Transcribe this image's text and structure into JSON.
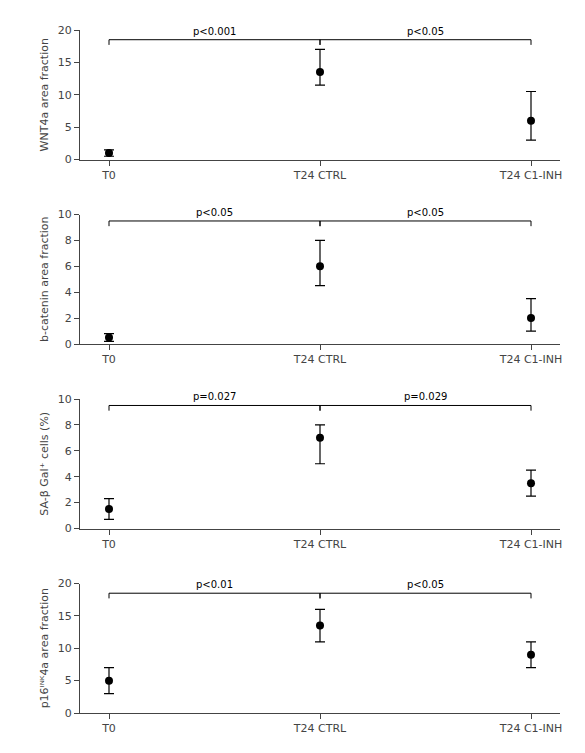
{
  "chart_data": [
    {
      "type": "scatter",
      "marker": "circle",
      "color": "#000000",
      "grid": false,
      "ylabel": "WNT4a area fraction",
      "categories": [
        "T0",
        "T24 CTRL",
        "T24 C1-INH"
      ],
      "values": [
        1.0,
        13.5,
        6.0
      ],
      "error_upper": [
        0.5,
        3.5,
        4.5
      ],
      "error_lower": [
        0.5,
        2.0,
        3.0
      ],
      "ylim": [
        0,
        20
      ],
      "yticks": [
        0,
        5,
        10,
        15,
        20
      ],
      "annotations": [
        {
          "from": "T0",
          "to": "T24 CTRL",
          "y": 18.5,
          "label": "p<0.001"
        },
        {
          "from": "T24 CTRL",
          "to": "T24 C1-INH",
          "y": 18.5,
          "label": "p<0.05"
        }
      ]
    },
    {
      "type": "scatter",
      "marker": "circle",
      "color": "#000000",
      "grid": false,
      "ylabel": "b-catenin area fraction",
      "categories": [
        "T0",
        "T24 CTRL",
        "T24 C1-INH"
      ],
      "values": [
        0.5,
        6.0,
        2.0
      ],
      "error_upper": [
        0.3,
        2.0,
        1.5
      ],
      "error_lower": [
        0.3,
        1.5,
        1.0
      ],
      "ylim": [
        0,
        10
      ],
      "yticks": [
        0,
        2,
        4,
        6,
        8,
        10
      ],
      "annotations": [
        {
          "from": "T0",
          "to": "T24 CTRL",
          "y": 9.5,
          "label": "p<0.05"
        },
        {
          "from": "T24 CTRL",
          "to": "T24 C1-INH",
          "y": 9.5,
          "label": "p<0.05"
        }
      ]
    },
    {
      "type": "scatter",
      "marker": "circle",
      "color": "#000000",
      "grid": false,
      "ylabel": "SA-β Gal⁺ cells (%)",
      "categories": [
        "T0",
        "T24 CTRL",
        "T24 C1-INH"
      ],
      "values": [
        1.5,
        7.0,
        3.5
      ],
      "error_upper": [
        0.8,
        1.0,
        1.0
      ],
      "error_lower": [
        0.8,
        2.0,
        1.0
      ],
      "ylim": [
        0,
        10
      ],
      "yticks": [
        0,
        2,
        4,
        6,
        8,
        10
      ],
      "annotations": [
        {
          "from": "T0",
          "to": "T24 CTRL",
          "y": 9.5,
          "label": "p=0.027"
        },
        {
          "from": "T24 CTRL",
          "to": "T24 C1-INH",
          "y": 9.5,
          "label": "p=0.029"
        }
      ]
    },
    {
      "type": "scatter",
      "marker": "circle",
      "color": "#000000",
      "grid": false,
      "ylabel": "p16ᴵᴺᴷ4a area fraction",
      "categories": [
        "T0",
        "T24 CTRL",
        "T24 C1-INH"
      ],
      "values": [
        5.0,
        13.5,
        9.0
      ],
      "error_upper": [
        2.0,
        2.5,
        2.0
      ],
      "error_lower": [
        2.0,
        2.5,
        2.0
      ],
      "ylim": [
        0,
        20
      ],
      "yticks": [
        0,
        5,
        10,
        15,
        20
      ],
      "annotations": [
        {
          "from": "T0",
          "to": "T24 CTRL",
          "y": 18.5,
          "label": "p<0.01"
        },
        {
          "from": "T24 CTRL",
          "to": "T24 C1-INH",
          "y": 18.5,
          "label": "p<0.05"
        }
      ]
    }
  ]
}
